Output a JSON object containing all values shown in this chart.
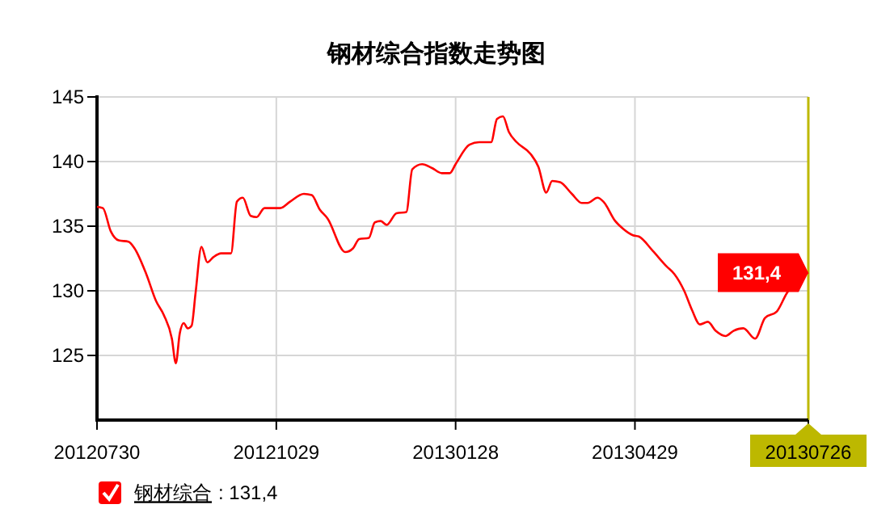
{
  "chart_data": {
    "type": "line",
    "title": "钢材综合指数走势图",
    "x": [
      "2012-07-30",
      "2012-08-02",
      "2012-08-06",
      "2012-08-10",
      "2012-08-15",
      "2012-08-18",
      "2012-08-24",
      "2012-08-29",
      "2012-09-02",
      "2012-09-06",
      "2012-09-08",
      "2012-09-10",
      "2012-09-12",
      "2012-09-14",
      "2012-09-16",
      "2012-09-18",
      "2012-09-21",
      "2012-09-24",
      "2012-09-27",
      "2012-10-01",
      "2012-10-06",
      "2012-10-09",
      "2012-10-12",
      "2012-10-16",
      "2012-10-19",
      "2012-10-23",
      "2012-10-31",
      "2012-11-05",
      "2012-11-12",
      "2012-11-16",
      "2012-11-20",
      "2012-11-24",
      "2012-12-03",
      "2012-12-07",
      "2012-12-10",
      "2012-12-15",
      "2012-12-18",
      "2012-12-21",
      "2012-12-24",
      "2012-12-29",
      "2013-01-03",
      "2013-01-06",
      "2013-01-11",
      "2013-01-16",
      "2013-01-21",
      "2013-01-25",
      "2013-01-28",
      "2013-02-04",
      "2013-02-09",
      "2013-02-15",
      "2013-02-18",
      "2013-02-21",
      "2013-02-24",
      "2013-02-28",
      "2013-03-07",
      "2013-03-11",
      "2013-03-15",
      "2013-03-18",
      "2013-03-22",
      "2013-03-28",
      "2013-04-02",
      "2013-04-05",
      "2013-04-10",
      "2013-04-13",
      "2013-04-19",
      "2013-04-23",
      "2013-04-28",
      "2013-05-01",
      "2013-05-08",
      "2013-05-15",
      "2013-05-19",
      "2013-05-24",
      "2013-05-28",
      "2013-06-01",
      "2013-06-05",
      "2013-06-09",
      "2013-06-14",
      "2013-06-18",
      "2013-06-23",
      "2013-06-29",
      "2013-07-04",
      "2013-07-10",
      "2013-07-15",
      "2013-07-21",
      "2013-07-26"
    ],
    "series": [
      {
        "name": "钢材综合",
        "color": "#ff0000",
        "values": [
          136.5,
          136.4,
          134.6,
          133.9,
          133.8,
          133.3,
          131.3,
          129.2,
          128.1,
          126.3,
          124.4,
          126.7,
          127.5,
          127.1,
          127.3,
          129.8,
          133.4,
          132.2,
          132.6,
          132.9,
          132.9,
          136.9,
          137.2,
          135.8,
          135.7,
          136.4,
          136.4,
          136.9,
          137.5,
          137.4,
          136.3,
          135.6,
          133,
          133.3,
          134,
          134.1,
          135.3,
          135.4,
          135.1,
          136,
          136.1,
          139.4,
          139.8,
          139.5,
          139.1,
          139.1,
          139.8,
          141.3,
          141.5,
          141.5,
          143.3,
          143.5,
          142.3,
          141.5,
          140.6,
          139.6,
          137.6,
          138.5,
          138.4,
          137.5,
          136.8,
          136.8,
          137.2,
          136.9,
          135.4,
          134.8,
          134.3,
          134.2,
          133.1,
          131.9,
          131.3,
          130,
          128.5,
          127.4,
          127.6,
          126.9,
          126.5,
          126.9,
          127.1,
          126.3,
          127.9,
          128.4,
          129.8,
          131,
          131.4
        ]
      }
    ],
    "xlim": [
      "2012-07-30",
      "2013-07-26"
    ],
    "xticks": [
      {
        "value": "2012-07-30",
        "label": "20120730"
      },
      {
        "value": "2012-10-29",
        "label": "20121029"
      },
      {
        "value": "2013-01-28",
        "label": "20130128"
      },
      {
        "value": "2013-04-29",
        "label": "20130429"
      },
      {
        "value": "2013-07-26",
        "label": "20130726"
      }
    ],
    "ylim": [
      120,
      145
    ],
    "yticks": [
      125,
      130,
      135,
      140,
      145
    ],
    "grid": true,
    "legend": "bottom",
    "marker": "none",
    "line_style": "solid",
    "ref_lines": [
      {
        "axis": "x",
        "value": "2013-07-26",
        "color": "#bdb800"
      }
    ],
    "annotations": [
      {
        "text": "131,4",
        "x": "2013-07-26",
        "y": 131.4
      },
      ": 131,4"
    ]
  }
}
